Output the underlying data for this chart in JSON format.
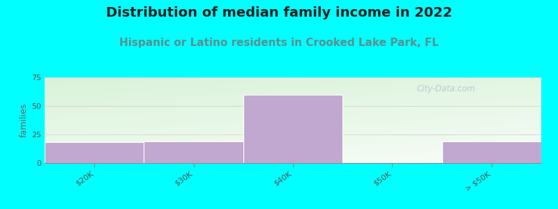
{
  "title": "Distribution of median family income in 2022",
  "subtitle": "Hispanic or Latino residents in Crooked Lake Park, FL",
  "categories": [
    "$20K",
    "$30K",
    "$40K",
    "$50K",
    "> $50K"
  ],
  "values": [
    18,
    19,
    60,
    0,
    19
  ],
  "bar_color": "#c0a8d0",
  "bar_edge_color": "#ffffff",
  "ylabel": "families",
  "ylim": [
    0,
    75
  ],
  "yticks": [
    0,
    25,
    50,
    75
  ],
  "background_color": "#00ffff",
  "plot_bg_color_topleft": "#d8f0d8",
  "plot_bg_color_topright": "#e8f0e8",
  "plot_bg_color_bottomleft": "#f0faf0",
  "plot_bg_color_bottomright": "#f8fbf8",
  "title_fontsize": 14,
  "subtitle_fontsize": 11,
  "subtitle_color": "#5a9090",
  "axis_label_fontsize": 9,
  "tick_fontsize": 8,
  "watermark": "City-Data.com",
  "watermark_color": "#b0c8c8"
}
